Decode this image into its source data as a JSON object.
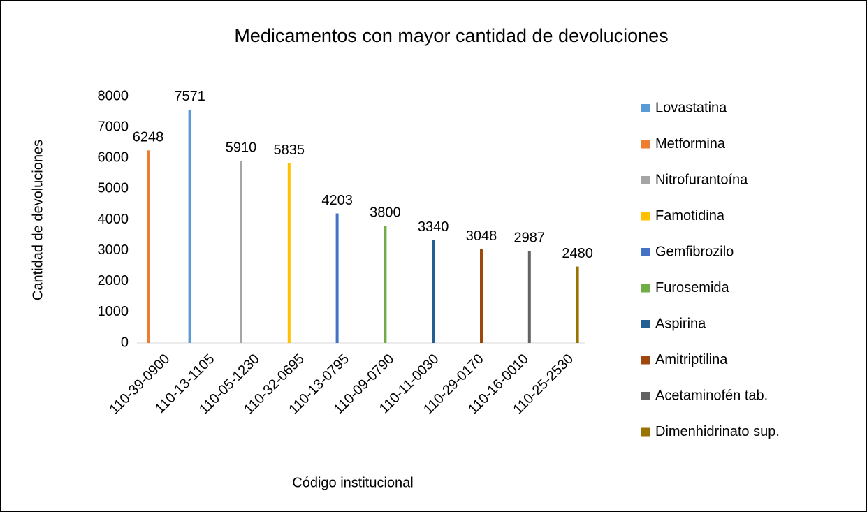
{
  "chart_data": {
    "type": "bar",
    "title": "Medicamentos con mayor cantidad de devoluciones",
    "x_label": "Código institucional",
    "y_label": "Cantidad de devoluciones",
    "categories": [
      "110-39-0900",
      "110-13-1105",
      "110-05-1230",
      "110-32-0695",
      "110-13-0795",
      "110-09-0790",
      "110-11-0030",
      "110-29-0170",
      "110-16-0010",
      "110-25-2530"
    ],
    "series": [
      {
        "name": "Lovastatina",
        "color": "#5b9bd5",
        "values": [
          null,
          7571,
          null,
          null,
          null,
          null,
          null,
          null,
          null,
          null
        ]
      },
      {
        "name": "Metformina",
        "color": "#ed7d31",
        "values": [
          6248,
          null,
          null,
          null,
          null,
          null,
          null,
          null,
          null,
          null
        ]
      },
      {
        "name": "Nitrofurantoína",
        "color": "#a5a5a5",
        "values": [
          null,
          null,
          5910,
          null,
          null,
          null,
          null,
          null,
          null,
          null
        ]
      },
      {
        "name": "Famotidina",
        "color": "#ffc000",
        "values": [
          null,
          null,
          null,
          5835,
          null,
          null,
          null,
          null,
          null,
          null
        ]
      },
      {
        "name": "Gemfibrozilo",
        "color": "#4472c4",
        "values": [
          null,
          null,
          null,
          null,
          4203,
          null,
          null,
          null,
          null,
          null
        ]
      },
      {
        "name": "Furosemida",
        "color": "#70ad47",
        "values": [
          null,
          null,
          null,
          null,
          null,
          3800,
          null,
          null,
          null,
          null
        ]
      },
      {
        "name": "Aspirina",
        "color": "#255e91",
        "values": [
          null,
          null,
          null,
          null,
          null,
          null,
          3340,
          null,
          null,
          null
        ]
      },
      {
        "name": "Amitriptilina",
        "color": "#9e480e",
        "values": [
          null,
          null,
          null,
          null,
          null,
          null,
          null,
          3048,
          null,
          null
        ]
      },
      {
        "name": "Acetaminofén tab.",
        "color": "#636363",
        "values": [
          null,
          null,
          null,
          null,
          null,
          null,
          null,
          null,
          2987,
          null
        ]
      },
      {
        "name": "Dimenhidrinato sup.",
        "color": "#997300",
        "values": [
          null,
          null,
          null,
          null,
          null,
          null,
          null,
          null,
          null,
          2480
        ]
      }
    ],
    "ylim": [
      0,
      8000
    ],
    "yticks": [
      0,
      1000,
      2000,
      3000,
      4000,
      5000,
      6000,
      7000,
      8000
    ],
    "grid": false,
    "legend": "right"
  }
}
